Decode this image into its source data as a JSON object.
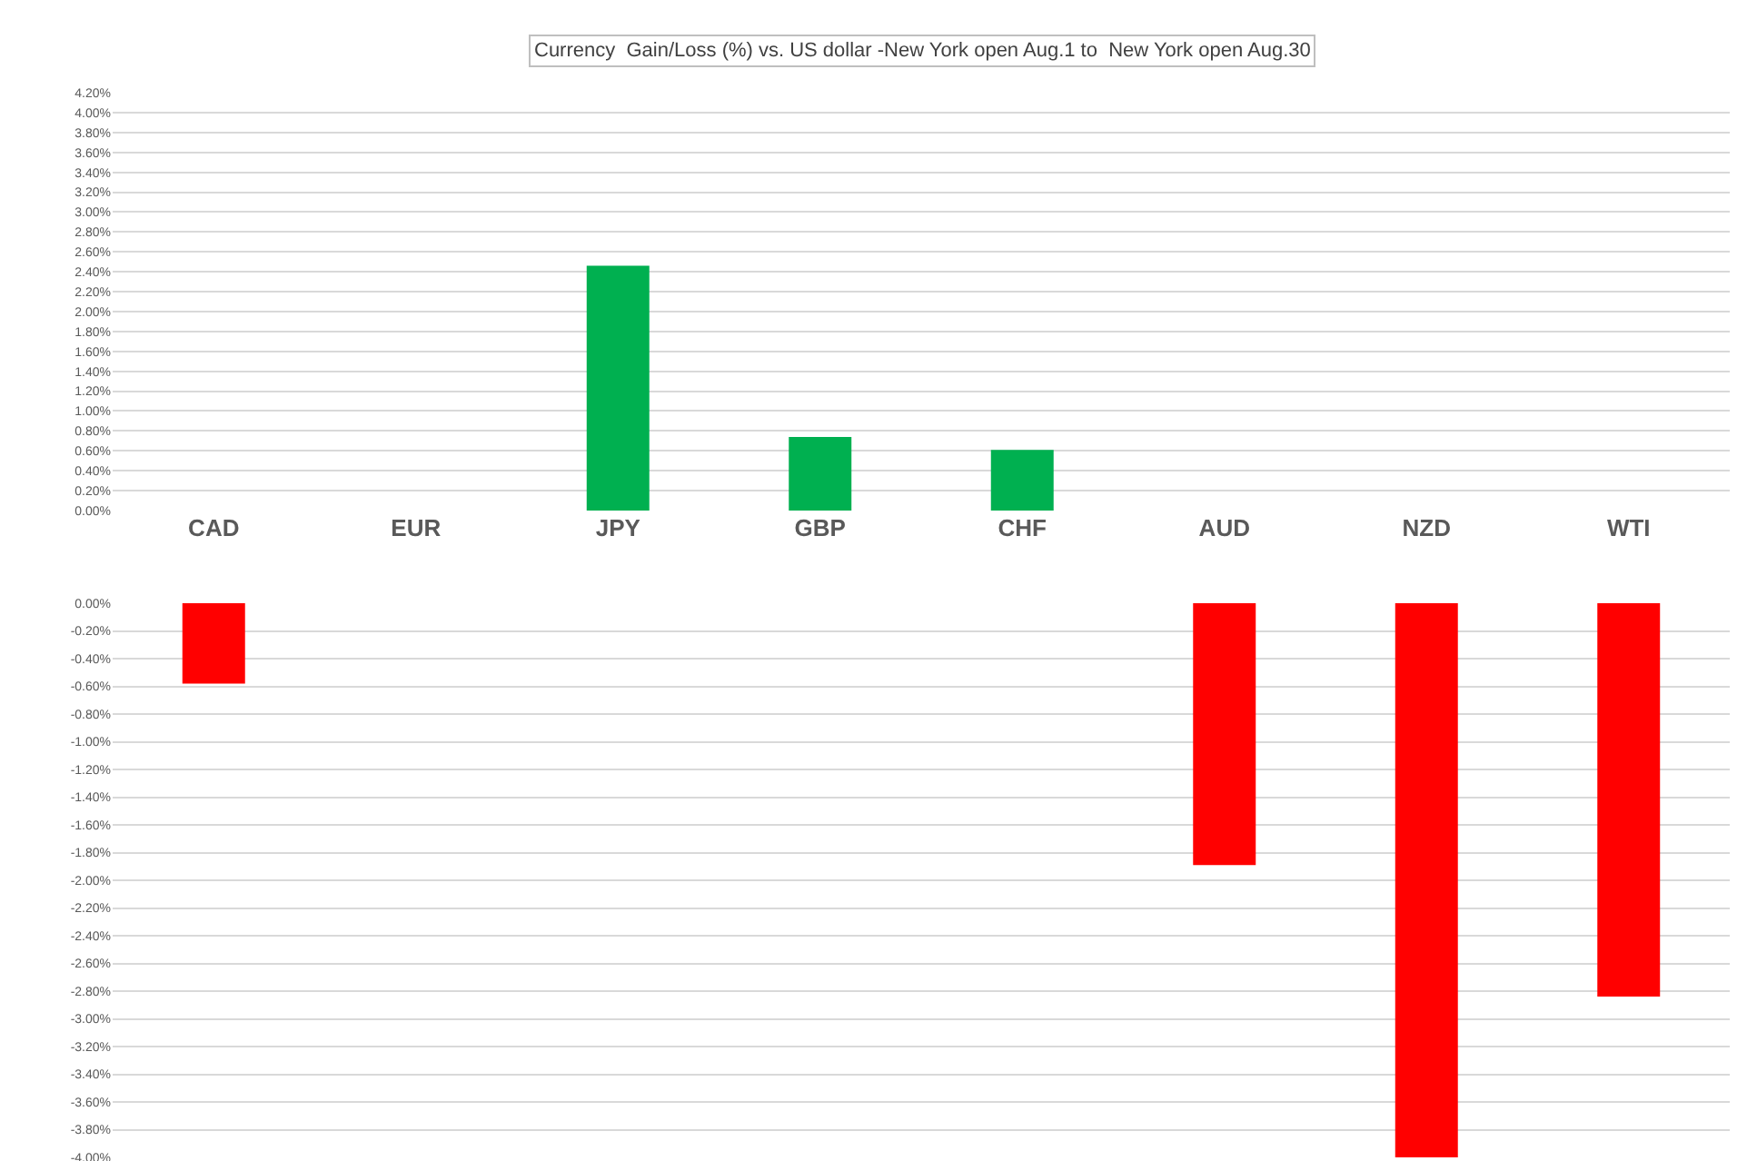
{
  "chart_data": [
    {
      "type": "bar",
      "title": "Currency  Gain/Loss (%) vs. US dollar -New York open Aug.1 to  New York open Aug.30",
      "categories": [
        "CAD",
        "EUR",
        "JPY",
        "GBP",
        "CHF",
        "AUD",
        "NZD",
        "WTI"
      ],
      "values": [
        null,
        null,
        2.46,
        0.74,
        0.61,
        null,
        null,
        null
      ],
      "color": "#00b050",
      "ylim": [
        0,
        4.2
      ],
      "yticks": [
        {
          "value": 0,
          "label": "0.00%"
        },
        {
          "value": 0.2,
          "label": "0.20%"
        },
        {
          "value": 0.4,
          "label": "0.40%"
        },
        {
          "value": 0.6,
          "label": "0.60%"
        },
        {
          "value": 0.8,
          "label": "0.80%"
        },
        {
          "value": 1.0,
          "label": "1.00%"
        },
        {
          "value": 1.2,
          "label": "1.20%"
        },
        {
          "value": 1.4,
          "label": "1.40%"
        },
        {
          "value": 1.6,
          "label": "1.60%"
        },
        {
          "value": 1.8,
          "label": "1.80%"
        },
        {
          "value": 2.0,
          "label": "2.00%"
        },
        {
          "value": 2.2,
          "label": "2.20%"
        },
        {
          "value": 2.4,
          "label": "2.40%"
        },
        {
          "value": 2.6,
          "label": "2.60%"
        },
        {
          "value": 2.8,
          "label": "2.80%"
        },
        {
          "value": 3.0,
          "label": "3.00%"
        },
        {
          "value": 3.2,
          "label": "3.20%"
        },
        {
          "value": 3.4,
          "label": "3.40%"
        },
        {
          "value": 3.6,
          "label": "3.60%"
        },
        {
          "value": 3.8,
          "label": "3.80%"
        },
        {
          "value": 4.0,
          "label": "4.00%"
        },
        {
          "value": 4.2,
          "label": "4.20%"
        }
      ],
      "grid": "y"
    },
    {
      "type": "bar",
      "categories": [
        null,
        null,
        null,
        null,
        null,
        null,
        null,
        null
      ],
      "values": [
        -0.58,
        null,
        null,
        null,
        null,
        -1.89,
        -4.0,
        -2.84
      ],
      "color": "#ff0000",
      "ylim": [
        -4.0,
        0
      ],
      "yticks": [
        {
          "value": 0,
          "label": "0.00%"
        },
        {
          "value": -0.2,
          "label": "-0.20%"
        },
        {
          "value": -0.4,
          "label": "-0.40%"
        },
        {
          "value": -0.6,
          "label": "-0.60%"
        },
        {
          "value": -0.8,
          "label": "-0.80%"
        },
        {
          "value": -1.0,
          "label": "-1.00%"
        },
        {
          "value": -1.2,
          "label": "-1.20%"
        },
        {
          "value": -1.4,
          "label": "-1.40%"
        },
        {
          "value": -1.6,
          "label": "-1.60%"
        },
        {
          "value": -1.8,
          "label": "-1.80%"
        },
        {
          "value": -2.0,
          "label": "-2.00%"
        },
        {
          "value": -2.2,
          "label": "-2.20%"
        },
        {
          "value": -2.4,
          "label": "-2.40%"
        },
        {
          "value": -2.6,
          "label": "-2.60%"
        },
        {
          "value": -2.8,
          "label": "-2.80%"
        },
        {
          "value": -3.0,
          "label": "-3.00%"
        },
        {
          "value": -3.2,
          "label": "-3.20%"
        },
        {
          "value": -3.4,
          "label": "-3.40%"
        },
        {
          "value": -3.6,
          "label": "-3.60%"
        },
        {
          "value": -3.8,
          "label": "-3.80%"
        },
        {
          "value": -4.0,
          "label": "-4.00%"
        }
      ],
      "grid": "y",
      "tick_labels": "y"
    }
  ]
}
